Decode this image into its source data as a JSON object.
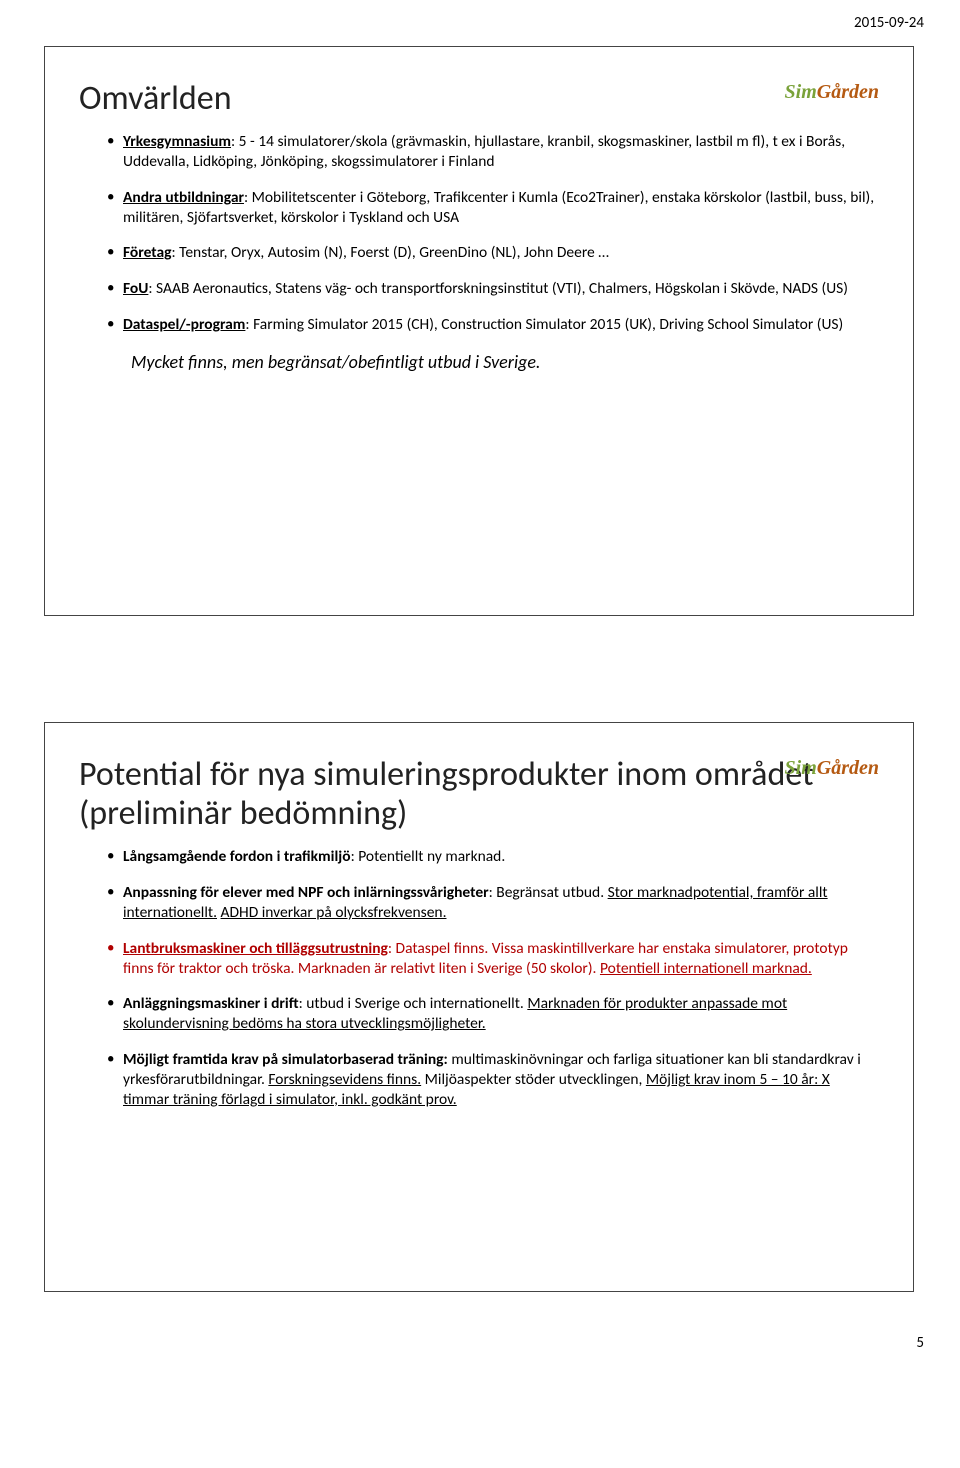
{
  "page_date": "2015-09-24",
  "page_number": "5",
  "brand": {
    "sim": "Sim",
    "garden": "Gården"
  },
  "slide1": {
    "title": "Omvärlden",
    "bullets": [
      {
        "lead": "Yrkesgymnasium",
        "rest": ": 5 - 14 simulatorer/skola (grävmaskin, hjullastare, kranbil, skogsmaskiner, lastbil m fl), t ex i Borås, Uddevalla, Lidköping, Jönköping, skogssimulatorer i Finland"
      },
      {
        "lead": "Andra utbildningar",
        "rest": ": Mobilitetscenter i Göteborg, Trafikcenter i Kumla (Eco2Trainer), enstaka körskolor (lastbil, buss, bil), militären, Sjöfartsverket, körskolor i Tyskland och USA"
      },
      {
        "lead": "Företag",
        "rest": ": Tenstar, Oryx, Autosim (N), Foerst (D), GreenDino (NL), John Deere …"
      },
      {
        "lead": "FoU",
        "rest": ": SAAB Aeronautics, Statens väg- och transportforskningsinstitut (VTI), Chalmers, Högskolan i Skövde, NADS (US)"
      },
      {
        "lead": "Dataspel/-program",
        "rest": ": Farming Simulator 2015 (CH), Construction Simulator 2015 (UK), Driving School Simulator (US)"
      }
    ],
    "summary": "Mycket finns, men begränsat/obefintligt utbud i Sverige."
  },
  "slide2": {
    "title": "Potential för nya simuleringsprodukter inom området (preliminär bedömning)",
    "b1": {
      "lead": "Långsamgående fordon i trafikmiljö",
      "rest": ": Potentiellt ny marknad."
    },
    "b2": {
      "lead": "Anpassning för elever med NPF och inlärningssvårigheter",
      "p1": ": Begränsat utbud. ",
      "u1": "Stor marknadpotential, framför allt internationellt.",
      "p2": " ",
      "u2": "ADHD inverkar på olycksfrekvensen."
    },
    "b3": {
      "lead": "Lantbruksmaskiner och tilläggsutrustning",
      "p1": ": Dataspel finns. ",
      "p2": "Vissa maskintillverkare har enstaka simulatorer, prototyp finns för traktor och tröska. ",
      "p3": "Marknaden är relativt liten i Sverige (50 skolor). ",
      "u1": "Potentiell internationell marknad."
    },
    "b4": {
      "lead": "Anläggningsmaskiner i drift",
      "p1": ": utbud i Sverige och internationellt. ",
      "u1": "Marknaden för produkter anpassade mot skolundervisning bedöms ha stora utvecklingsmöjligheter."
    },
    "b5": {
      "lead": "Möjligt framtida krav på simulatorbaserad träning:",
      "p1": " multimaskinövningar och farliga situationer kan bli standardkrav i yrkesförarutbildningar. ",
      "u1": "Forskningsevidens finns.",
      "p2": " Miljöaspekter stöder utvecklingen, ",
      "u2": "Möjligt krav inom 5 – 10 år: X timmar träning förlagd i simulator, inkl. godkänt prov."
    }
  }
}
